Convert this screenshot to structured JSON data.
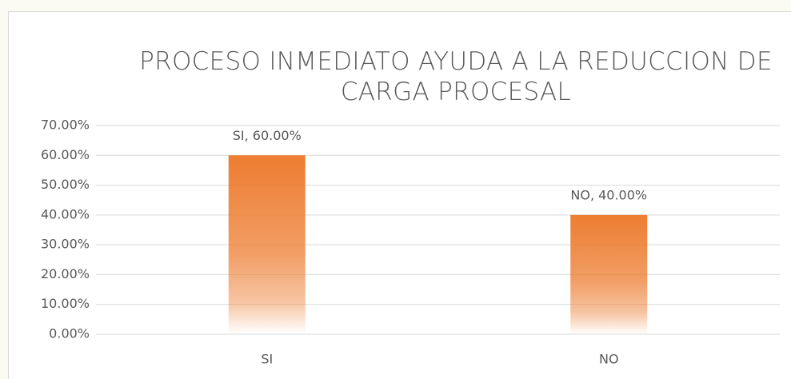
{
  "chart_data": {
    "type": "bar",
    "title": "PROCESO INMEDIATO AYUDA A LA REDUCCION DE CARGA PROCESAL",
    "categories": [
      "SI",
      "NO"
    ],
    "values": [
      60,
      40
    ],
    "value_labels": [
      "SI, 60.00%",
      "NO, 40.00%"
    ],
    "color": "#ed7d31",
    "ylim": [
      0,
      70
    ],
    "yticks": [
      {
        "value": 0,
        "label": "0.00%"
      },
      {
        "value": 10,
        "label": "10.00%"
      },
      {
        "value": 20,
        "label": "20.00%"
      },
      {
        "value": 30,
        "label": "30.00%"
      },
      {
        "value": 40,
        "label": "40.00%"
      },
      {
        "value": 50,
        "label": "50.00%"
      },
      {
        "value": 60,
        "label": "60.00%"
      },
      {
        "value": 70,
        "label": "70.00%"
      }
    ],
    "grid": true
  }
}
